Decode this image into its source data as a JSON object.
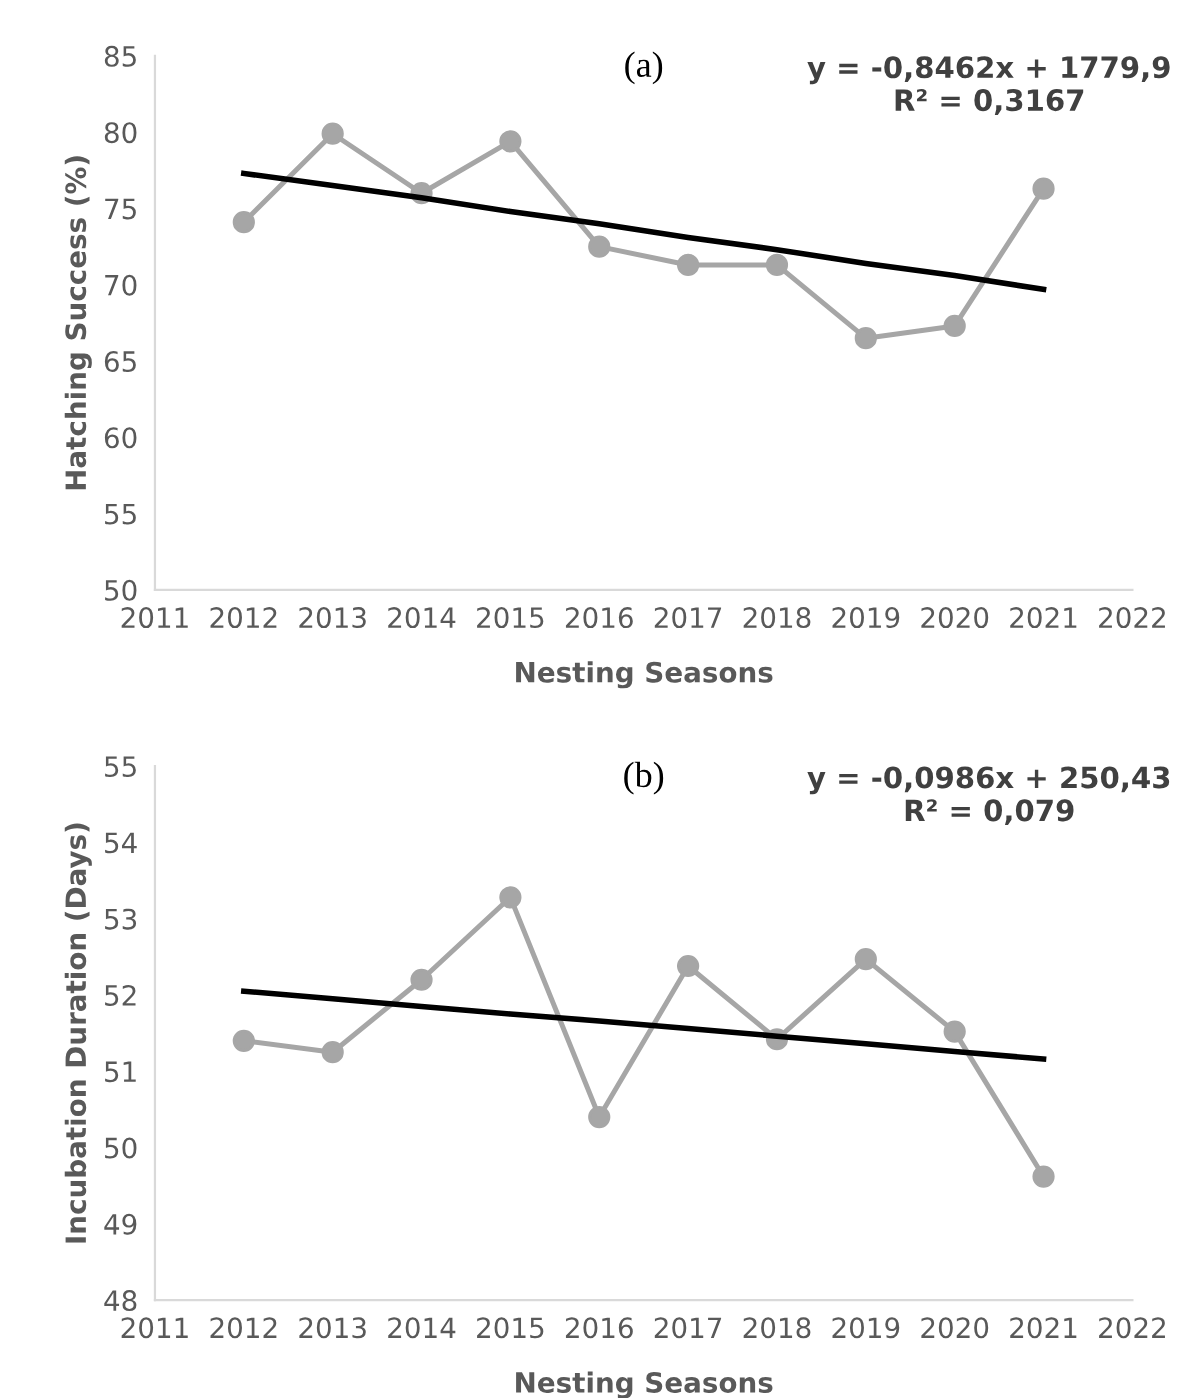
{
  "chart_data": [
    {
      "type": "line",
      "title": "(a)",
      "xlabel": "Nesting Seasons",
      "ylabel": "Hatching Success (%)",
      "annotations": [
        "y = -0,8462x + 1779,9\nR² = 0,3167"
      ],
      "x": [
        2012,
        2013,
        2014,
        2015,
        2016,
        2017,
        2018,
        2019,
        2020,
        2021
      ],
      "series": [
        {
          "color": "#a6a6a6",
          "marker": "circle",
          "values": [
            74.1,
            79.9,
            76.0,
            79.4,
            72.5,
            71.3,
            71.3,
            66.5,
            67.3,
            76.3
          ]
        },
        {
          "type": "line",
          "color": "#000000",
          "marker": "none",
          "values": [
            77.3,
            76.5,
            75.7,
            74.8,
            74.0,
            73.1,
            72.3,
            71.4,
            70.6,
            69.7
          ]
        }
      ],
      "xlim": [
        2011,
        2022
      ],
      "xticks": [
        2011,
        2012,
        2013,
        2014,
        2015,
        2016,
        2017,
        2018,
        2019,
        2020,
        2021,
        2022
      ],
      "ylim": [
        50,
        85
      ],
      "yticks": [
        50,
        55,
        60,
        65,
        70,
        75,
        80,
        85
      ],
      "grid": false,
      "legend": false
    },
    {
      "type": "line",
      "title": "(b)",
      "xlabel": "Nesting Seasons",
      "ylabel": "Incubation Duration (Days)",
      "annotations": [
        "y = -0,0986x + 250,43\nR² = 0,079"
      ],
      "x": [
        2012,
        2013,
        2014,
        2015,
        2016,
        2017,
        2018,
        2019,
        2020,
        2021
      ],
      "series": [
        {
          "color": "#a6a6a6",
          "marker": "circle",
          "values": [
            51.4,
            51.25,
            52.2,
            53.28,
            50.4,
            52.38,
            51.42,
            52.47,
            51.52,
            49.62
          ]
        },
        {
          "type": "line",
          "color": "#000000",
          "marker": "none",
          "values": [
            52.05,
            51.95,
            51.85,
            51.75,
            51.66,
            51.56,
            51.46,
            51.36,
            51.26,
            51.16
          ]
        }
      ],
      "xlim": [
        2011,
        2022
      ],
      "xticks": [
        2011,
        2012,
        2013,
        2014,
        2015,
        2016,
        2017,
        2018,
        2019,
        2020,
        2021,
        2022
      ],
      "ylim": [
        48,
        55
      ],
      "yticks": [
        48,
        49,
        50,
        51,
        52,
        53,
        54,
        55
      ],
      "grid": false,
      "legend": false
    }
  ]
}
